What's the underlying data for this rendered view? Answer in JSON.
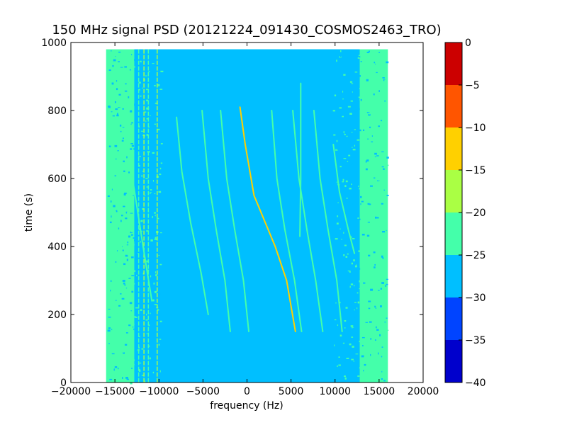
{
  "chart_data": {
    "type": "heatmap",
    "title": "150 MHz signal PSD (20121224_091430_COSMOS2463_TRO)",
    "xlabel": "frequency (Hz)",
    "ylabel": "time (s)",
    "xlim": [
      -20000,
      20000
    ],
    "ylim": [
      0,
      1000
    ],
    "x_ticks": [
      -20000,
      -15000,
      -10000,
      -5000,
      0,
      5000,
      10000,
      15000,
      20000
    ],
    "x_tick_labels": [
      "−20000",
      "−15000",
      "−10000",
      "−5000",
      "0",
      "5000",
      "10000",
      "15000",
      "20000"
    ],
    "y_ticks": [
      0,
      200,
      400,
      600,
      800,
      1000
    ],
    "y_tick_labels": [
      "0",
      "200",
      "400",
      "600",
      "800",
      "1000"
    ],
    "grid": false,
    "data_extent": {
      "freq_min": -16000,
      "freq_max": 16000,
      "time_min": 0,
      "time_max": 980
    },
    "colorbar": {
      "range": [
        -40,
        0
      ],
      "ticks": [
        0,
        -5,
        -10,
        -15,
        -20,
        -25,
        -30,
        -35,
        -40
      ],
      "tick_labels": [
        "0",
        "−5",
        "−10",
        "−15",
        "−20",
        "−25",
        "−30",
        "−35",
        "−40"
      ],
      "levels": [
        {
          "min": -40,
          "max": -35,
          "color": "#0000cc"
        },
        {
          "min": -35,
          "max": -30,
          "color": "#0044ff"
        },
        {
          "min": -30,
          "max": -25,
          "color": "#00bfff"
        },
        {
          "min": -25,
          "max": -20,
          "color": "#44ffaa"
        },
        {
          "min": -20,
          "max": -15,
          "color": "#aaff44"
        },
        {
          "min": -15,
          "max": -10,
          "color": "#ffd000"
        },
        {
          "min": -10,
          "max": -5,
          "color": "#ff5500"
        },
        {
          "min": -5,
          "max": 0,
          "color": "#cc0000"
        }
      ]
    },
    "background_level_color": "#00bfff",
    "edge_level_color": "#44ffaa",
    "signal_tracks": [
      {
        "points": [
          [
            -5100,
            800
          ],
          [
            -4400,
            600
          ],
          [
            -3500,
            450
          ],
          [
            -2500,
            300
          ],
          [
            -1900,
            150
          ]
        ],
        "color": "#44ffaa"
      },
      {
        "points": [
          [
            -3000,
            800
          ],
          [
            -2300,
            600
          ],
          [
            -1400,
            450
          ],
          [
            -400,
            300
          ],
          [
            200,
            150
          ]
        ],
        "color": "#44ffaa"
      },
      {
        "points": [
          [
            -800,
            810
          ],
          [
            -200,
            700
          ],
          [
            800,
            550
          ],
          [
            3200,
            400
          ],
          [
            4500,
            300
          ],
          [
            5500,
            150
          ]
        ],
        "color": "#ffd000"
      },
      {
        "points": [
          [
            2800,
            800
          ],
          [
            3400,
            600
          ],
          [
            4300,
            450
          ],
          [
            5400,
            300
          ],
          [
            6200,
            150
          ]
        ],
        "color": "#44ffaa"
      },
      {
        "points": [
          [
            5200,
            800
          ],
          [
            5900,
            600
          ],
          [
            6800,
            450
          ],
          [
            7800,
            300
          ],
          [
            8600,
            150
          ]
        ],
        "color": "#44ffaa"
      },
      {
        "points": [
          [
            7600,
            800
          ],
          [
            8300,
            600
          ],
          [
            9200,
            450
          ],
          [
            10200,
            300
          ],
          [
            10800,
            150
          ]
        ],
        "color": "#44ffaa"
      },
      {
        "points": [
          [
            -8000,
            780
          ],
          [
            -7400,
            620
          ],
          [
            -6400,
            470
          ],
          [
            -5200,
            320
          ],
          [
            -4400,
            200
          ]
        ],
        "color": "#44ffaa"
      },
      {
        "points": [
          [
            9800,
            700
          ],
          [
            10500,
            560
          ],
          [
            11500,
            450
          ],
          [
            12200,
            380
          ]
        ],
        "color": "#44ffaa"
      },
      {
        "points": [
          [
            -13000,
            600
          ],
          [
            -11800,
            400
          ],
          [
            -10800,
            240
          ]
        ],
        "color": "#44ffaa"
      },
      {
        "points": [
          [
            6100,
            880
          ],
          [
            6100,
            600
          ],
          [
            6000,
            430
          ]
        ],
        "color": "#44ffaa"
      }
    ],
    "vertical_lines": [
      {
        "freq": -12300,
        "color": "#44ffaa"
      },
      {
        "freq": -11700,
        "color": "#aaff44"
      },
      {
        "freq": -11200,
        "color": "#44ffaa"
      },
      {
        "freq": -10200,
        "color": "#aaff44"
      }
    ]
  }
}
